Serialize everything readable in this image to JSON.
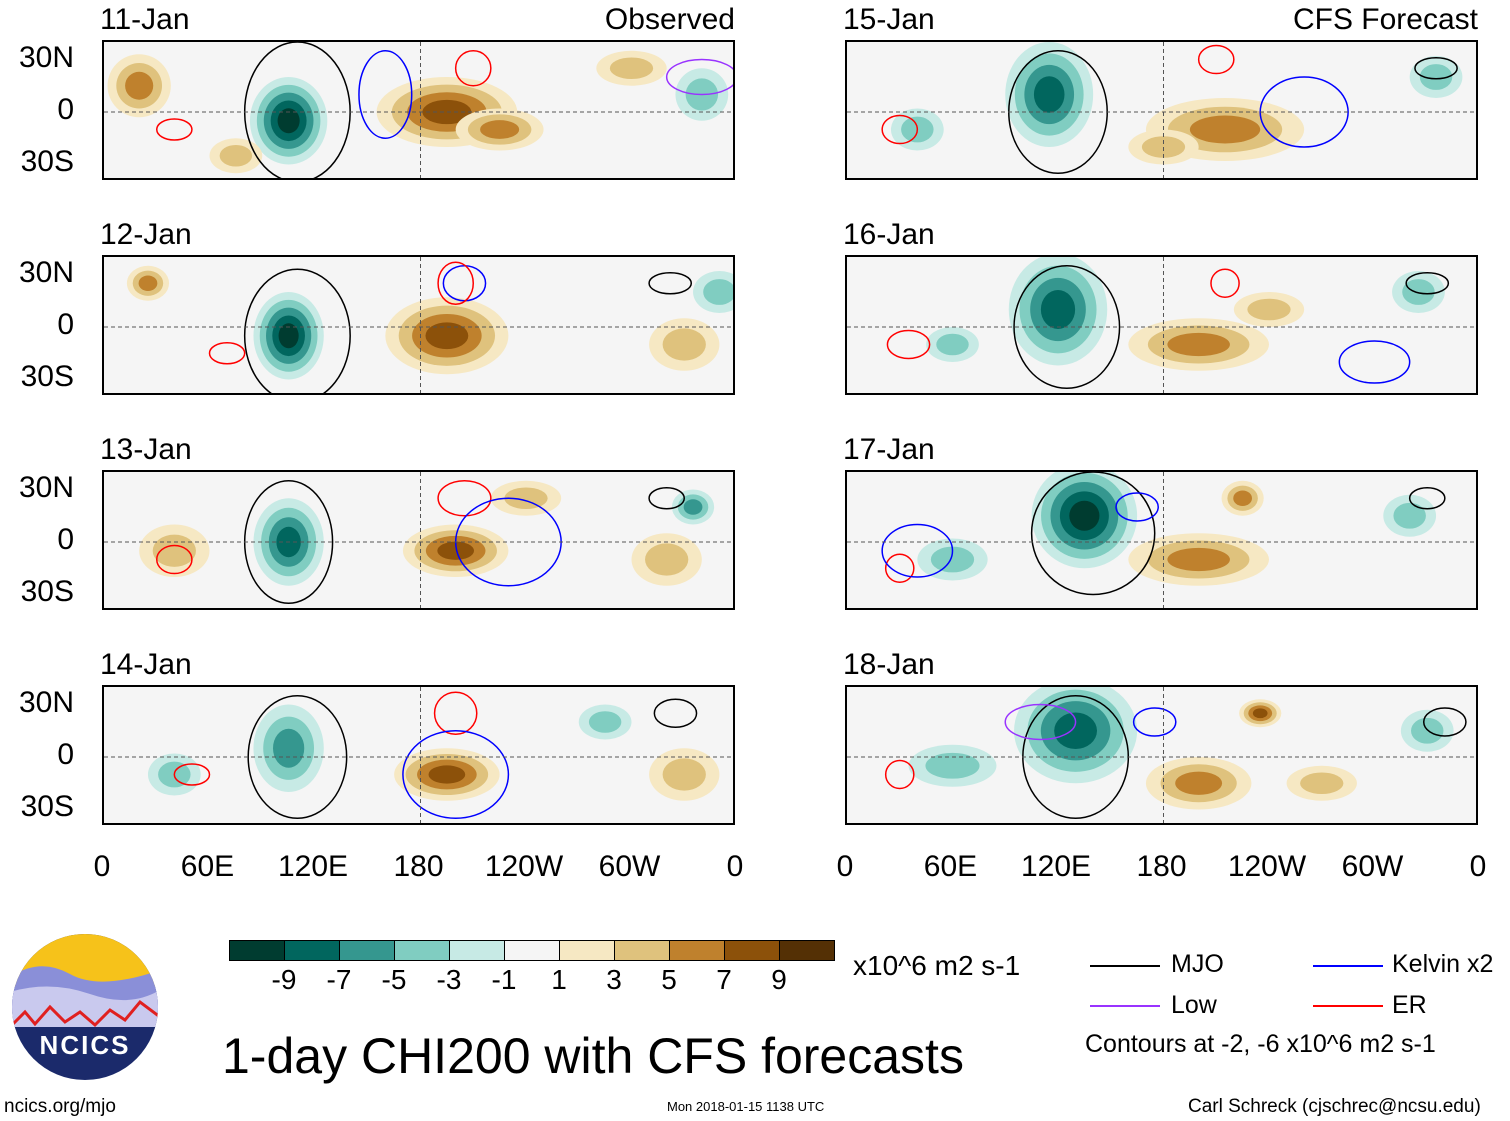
{
  "labels": {
    "observed": "Observed",
    "forecast": "CFS Forecast",
    "lat": [
      "30N",
      "0",
      "30S"
    ],
    "lon": [
      "0",
      "60E",
      "120E",
      "180",
      "120W",
      "60W",
      "0"
    ]
  },
  "colorbar": {
    "colors": [
      "#003c30",
      "#01665e",
      "#35978f",
      "#80cdc1",
      "#c7eae5",
      "#f5f5f5",
      "#f6e8c3",
      "#dfc27d",
      "#bf812d",
      "#8c510a",
      "#543005"
    ],
    "ticks": [
      "-9",
      "-7",
      "-5",
      "-3",
      "-1",
      "1",
      "3",
      "5",
      "7",
      "9"
    ],
    "units": "x10^6 m2 s-1"
  },
  "legend": {
    "mjo": "MJO",
    "low": "Low",
    "kelvin": "Kelvin x2",
    "er": "ER",
    "contours": "Contours at -2, -6 x10^6 m2 s-1",
    "colors": {
      "mjo": "#000000",
      "low": "#9933ff",
      "kelvin": "#0000ff",
      "er": "#ff0000"
    }
  },
  "title": "1-day CHI200 with CFS forecasts",
  "logo": "NCICS",
  "footer": {
    "site": "ncics.org/mjo",
    "timestamp": "Mon 2018-01-15 1138 UTC",
    "author": "Carl Schreck (cjschrec@ncsu.edu)"
  },
  "panels": [
    {
      "date": "11-Jan",
      "blobs": [
        [
          20,
          15,
          18,
          18,
          5
        ],
        [
          105,
          -5,
          22,
          25,
          -9
        ],
        [
          195,
          0,
          40,
          20,
          7
        ],
        [
          225,
          -10,
          25,
          12,
          5
        ],
        [
          340,
          10,
          15,
          15,
          -3
        ],
        [
          75,
          -25,
          15,
          10,
          3
        ],
        [
          300,
          25,
          20,
          10,
          3
        ]
      ],
      "contours": [
        [
          "mjo",
          110,
          0,
          30,
          40
        ],
        [
          "er",
          40,
          -10,
          10,
          6
        ],
        [
          "kelvin",
          160,
          10,
          15,
          25
        ],
        [
          "er",
          210,
          25,
          10,
          10
        ],
        [
          "low",
          340,
          20,
          20,
          10
        ]
      ]
    },
    {
      "date": "15-Jan",
      "blobs": [
        [
          115,
          10,
          25,
          30,
          -7
        ],
        [
          215,
          -10,
          45,
          18,
          5
        ],
        [
          180,
          -20,
          20,
          10,
          3
        ],
        [
          335,
          20,
          15,
          12,
          -3
        ],
        [
          40,
          -10,
          15,
          12,
          -3
        ]
      ],
      "contours": [
        [
          "mjo",
          120,
          0,
          28,
          35
        ],
        [
          "er",
          210,
          30,
          10,
          8
        ],
        [
          "mjo",
          335,
          25,
          12,
          6
        ],
        [
          "er",
          30,
          -10,
          10,
          8
        ],
        [
          "kelvin",
          260,
          0,
          25,
          20
        ]
      ]
    },
    {
      "date": "12-Jan",
      "blobs": [
        [
          25,
          25,
          12,
          10,
          5
        ],
        [
          105,
          -5,
          20,
          25,
          -9
        ],
        [
          195,
          -5,
          35,
          22,
          7
        ],
        [
          330,
          -10,
          20,
          15,
          3
        ],
        [
          350,
          20,
          15,
          12,
          -3
        ]
      ],
      "contours": [
        [
          "mjo",
          110,
          -5,
          30,
          38
        ],
        [
          "er",
          70,
          -15,
          10,
          6
        ],
        [
          "kelvin",
          205,
          25,
          12,
          10
        ],
        [
          "er",
          200,
          25,
          10,
          12
        ],
        [
          "mjo",
          322,
          25,
          12,
          6
        ]
      ]
    },
    {
      "date": "16-Jan",
      "blobs": [
        [
          120,
          10,
          28,
          32,
          -7
        ],
        [
          200,
          -10,
          40,
          15,
          5
        ],
        [
          240,
          10,
          20,
          10,
          3
        ],
        [
          325,
          20,
          15,
          12,
          -3
        ],
        [
          60,
          -10,
          15,
          10,
          -3
        ]
      ],
      "contours": [
        [
          "mjo",
          125,
          0,
          30,
          35
        ],
        [
          "er",
          215,
          25,
          8,
          8
        ],
        [
          "mjo",
          330,
          25,
          12,
          6
        ],
        [
          "er",
          35,
          -10,
          12,
          8
        ],
        [
          "kelvin",
          300,
          -20,
          20,
          12
        ]
      ]
    },
    {
      "date": "13-Jan",
      "blobs": [
        [
          105,
          0,
          20,
          25,
          -7
        ],
        [
          200,
          -5,
          30,
          15,
          7
        ],
        [
          240,
          25,
          20,
          10,
          3
        ],
        [
          335,
          20,
          12,
          10,
          -5
        ],
        [
          320,
          -10,
          20,
          15,
          3
        ],
        [
          40,
          -5,
          20,
          15,
          3
        ]
      ],
      "contours": [
        [
          "mjo",
          105,
          0,
          25,
          35
        ],
        [
          "er",
          205,
          25,
          15,
          10
        ],
        [
          "mjo",
          320,
          25,
          10,
          6
        ],
        [
          "er",
          40,
          -10,
          10,
          8
        ],
        [
          "kelvin",
          230,
          0,
          30,
          25
        ]
      ]
    },
    {
      "date": "17-Jan",
      "blobs": [
        [
          135,
          15,
          30,
          30,
          -9
        ],
        [
          200,
          -10,
          40,
          15,
          5
        ],
        [
          225,
          25,
          12,
          10,
          5
        ],
        [
          320,
          15,
          15,
          12,
          -3
        ],
        [
          60,
          -10,
          20,
          12,
          -3
        ]
      ],
      "contours": [
        [
          "mjo",
          140,
          5,
          35,
          35
        ],
        [
          "kelvin",
          165,
          20,
          12,
          8
        ],
        [
          "mjo",
          330,
          25,
          10,
          6
        ],
        [
          "er",
          30,
          -15,
          8,
          8
        ],
        [
          "kelvin",
          40,
          -5,
          20,
          15
        ]
      ]
    },
    {
      "date": "14-Jan",
      "blobs": [
        [
          105,
          5,
          20,
          25,
          -5
        ],
        [
          195,
          -10,
          30,
          15,
          7
        ],
        [
          285,
          20,
          15,
          10,
          -3
        ],
        [
          330,
          -10,
          20,
          15,
          3
        ],
        [
          40,
          -10,
          15,
          12,
          -3
        ]
      ],
      "contours": [
        [
          "mjo",
          110,
          0,
          28,
          35
        ],
        [
          "er",
          200,
          25,
          12,
          12
        ],
        [
          "mjo",
          325,
          25,
          12,
          8
        ],
        [
          "er",
          50,
          -10,
          10,
          6
        ],
        [
          "kelvin",
          200,
          -10,
          30,
          25
        ]
      ]
    },
    {
      "date": "18-Jan",
      "blobs": [
        [
          130,
          15,
          35,
          30,
          -7
        ],
        [
          200,
          -15,
          30,
          15,
          5
        ],
        [
          235,
          25,
          12,
          8,
          7
        ],
        [
          330,
          15,
          15,
          12,
          -3
        ],
        [
          60,
          -5,
          25,
          12,
          -3
        ],
        [
          270,
          -15,
          20,
          10,
          3
        ]
      ],
      "contours": [
        [
          "mjo",
          130,
          0,
          30,
          35
        ],
        [
          "kelvin",
          175,
          20,
          12,
          8
        ],
        [
          "mjo",
          340,
          20,
          12,
          8
        ],
        [
          "er",
          30,
          -10,
          8,
          8
        ],
        [
          "low",
          110,
          20,
          20,
          10
        ]
      ]
    }
  ]
}
